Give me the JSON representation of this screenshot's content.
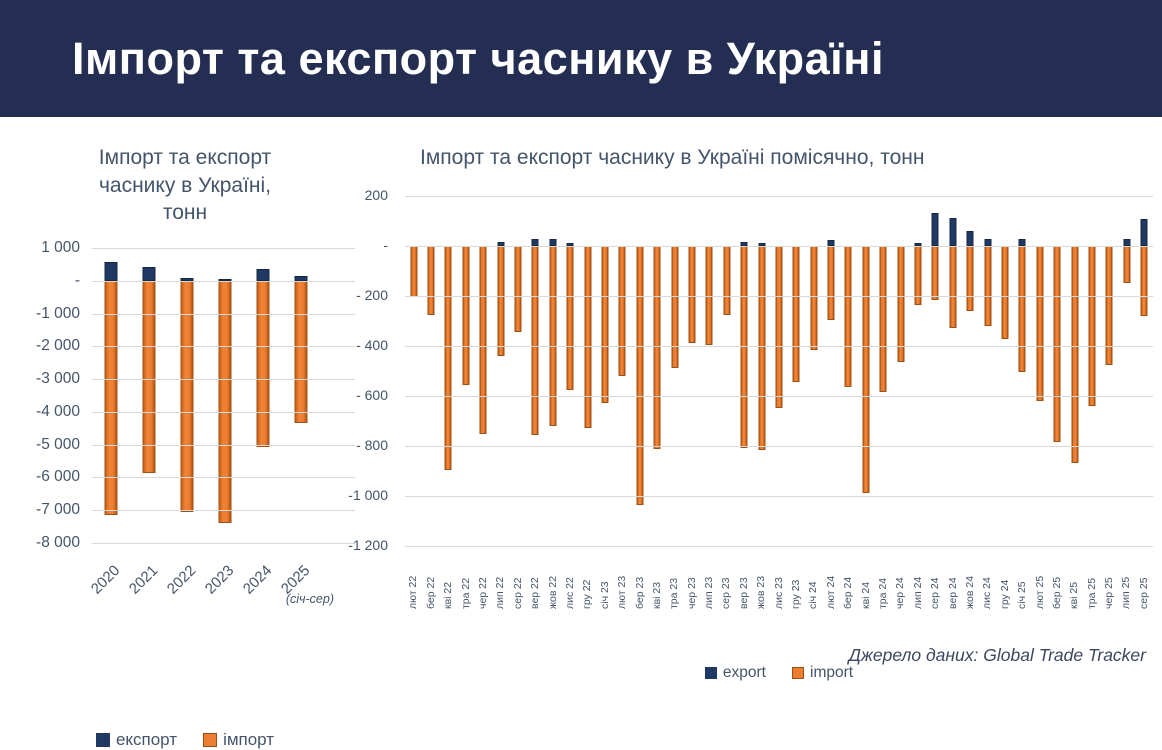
{
  "header": {
    "title": "Імпорт та експорт часнику в Україні"
  },
  "colors": {
    "header_bg": "#242E52",
    "export": "#1F3864",
    "import": "#ED7D31",
    "import_border": "#9C5217",
    "axis_text": "#44546A",
    "grid": "#D9D9D9"
  },
  "source": "Джерело даних: Global Trade Tracker",
  "chart_data": [
    {
      "id": "annual",
      "type": "bar",
      "title": "Імпорт та експорт\nчаснику в Україні,\nтонн",
      "categories": [
        "2020",
        "2021",
        "2022",
        "2023",
        "2024",
        "2025"
      ],
      "series": [
        {
          "name": "експорт",
          "color": "#1F3864",
          "values": [
            580,
            410,
            100,
            50,
            360,
            150
          ]
        },
        {
          "name": "імпорт",
          "color": "#ED7D31",
          "values": [
            -7150,
            -5850,
            -7050,
            -7400,
            -5080,
            -4340
          ]
        }
      ],
      "ylim": [
        -8000,
        1000
      ],
      "yticks": [
        {
          "v": 1000,
          "label": "1 000"
        },
        {
          "v": 0,
          "label": "-"
        },
        {
          "v": -1000,
          "label": "-1 000"
        },
        {
          "v": -2000,
          "label": "-2 000"
        },
        {
          "v": -3000,
          "label": "-3 000"
        },
        {
          "v": -4000,
          "label": "-4 000"
        },
        {
          "v": -5000,
          "label": "-5 000"
        },
        {
          "v": -6000,
          "label": "-6 000"
        },
        {
          "v": -7000,
          "label": "-7 000"
        },
        {
          "v": -8000,
          "label": "-8 000"
        }
      ],
      "x_annotation": {
        "index": 5,
        "label": "(січ-сер)"
      },
      "legend": [
        "експорт",
        "імпорт"
      ],
      "grid": true,
      "legend_position": "bottom",
      "unit": "тонн"
    },
    {
      "id": "monthly",
      "type": "bar",
      "title": "Імпорт та експорт часнику в Україні помісячно, тонн",
      "categories": [
        "лют 22",
        "бер 22",
        "кві 22",
        "тра 22",
        "чер 22",
        "лип 22",
        "сер 22",
        "вер 22",
        "жов 22",
        "лис 22",
        "гру 22",
        "січ 23",
        "лют 23",
        "бер 23",
        "кві 23",
        "тра 23",
        "чер 23",
        "лип 23",
        "сер 23",
        "вер 23",
        "жов 23",
        "лис 23",
        "гру 23",
        "січ 24",
        "лют 24",
        "бер 24",
        "кві 24",
        "тра 24",
        "чер 24",
        "лип 24",
        "сер 24",
        "вер 24",
        "жов 24",
        "лис 24",
        "гру 24",
        "січ 25",
        "лют 25",
        "бер 25",
        "кві 25",
        "тра 25",
        "чер 25",
        "лип 25",
        "сер 25"
      ],
      "series": [
        {
          "name": "export",
          "color": "#1F3864",
          "values": [
            0,
            0,
            0,
            0,
            0,
            15,
            0,
            29,
            27,
            11,
            0,
            0,
            0,
            0,
            0,
            0,
            0,
            0,
            0,
            18,
            11,
            0,
            0,
            0,
            23,
            0,
            0,
            0,
            0,
            14,
            131,
            112,
            61,
            27,
            0,
            27,
            0,
            0,
            0,
            0,
            0,
            27,
            108
          ]
        },
        {
          "name": "import",
          "color": "#ED7D31",
          "values": [
            -204,
            -274,
            -896,
            -554,
            -750,
            -439,
            -342,
            -757,
            -720,
            -577,
            -726,
            -627,
            -519,
            -1034,
            -812,
            -489,
            -388,
            -394,
            -276,
            -809,
            -816,
            -647,
            -543,
            -415,
            -297,
            -565,
            -987,
            -585,
            -464,
            -234,
            -214,
            -328,
            -261,
            -320,
            -370,
            -503,
            -618,
            -784,
            -868,
            -638,
            -476,
            -149,
            -280
          ]
        }
      ],
      "ylim": [
        -1200,
        200
      ],
      "yticks": [
        {
          "v": 200,
          "label": "200"
        },
        {
          "v": 0,
          "label": "-"
        },
        {
          "v": -200,
          "label": "- 200"
        },
        {
          "v": -400,
          "label": "- 400"
        },
        {
          "v": -600,
          "label": "- 600"
        },
        {
          "v": -800,
          "label": "- 800"
        },
        {
          "v": -1000,
          "label": "-1 000"
        },
        {
          "v": -1200,
          "label": "-1 200"
        }
      ],
      "legend": [
        "export",
        "import"
      ],
      "grid": true,
      "legend_position": "bottom",
      "unit": "тонн"
    }
  ]
}
